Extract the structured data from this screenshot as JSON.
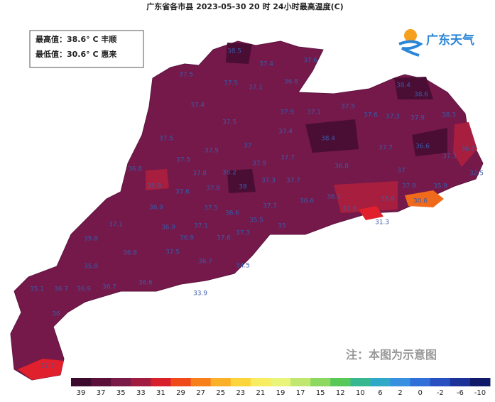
{
  "header": {
    "title": "广东省各市县 2023-05-30 20 时 24小时最高温度(C)"
  },
  "info": {
    "max": "最高值：38.6° C 丰顺",
    "min": "最低值：30.6° C 惠来"
  },
  "logo": {
    "text": "广东天气"
  },
  "note": "注：本图为示意图",
  "stations": [
    38.5,
    37.4,
    37.6,
    37.5,
    37.5,
    37.1,
    36.8,
    38.4,
    38.6,
    37.4,
    37.9,
    37.1,
    37.5,
    37.6,
    37.3,
    37.9,
    38.3,
    37.5,
    37.4,
    38.4,
    37.5,
    37.5,
    37,
    37.7,
    37.7,
    36.6,
    37.3,
    36.7,
    37.5,
    37.9,
    36.8,
    37.8,
    38.2,
    38,
    37.3,
    37.7,
    36.8,
    37,
    35.9,
    37.6,
    37.8,
    32.5,
    35.9,
    36.7,
    36.6,
    37.9,
    36.6,
    36.9,
    37.5,
    37.7,
    37.8,
    30.6,
    37.1,
    36.9,
    37.1,
    36.6,
    35.5,
    35,
    31.3,
    35.8,
    36.9,
    37.6,
    37.3,
    36.8,
    37.5,
    35.8,
    36.7,
    34.5,
    35.1,
    36.7,
    36.9,
    36.7,
    36.6,
    33.9,
    36,
    32.3
  ],
  "legend": [
    {
      "value": 39,
      "color": "#3b0a2c"
    },
    {
      "value": 37,
      "color": "#5a1038"
    },
    {
      "value": 35,
      "color": "#7a1a48"
    },
    {
      "value": 33,
      "color": "#a01c40"
    },
    {
      "value": 31,
      "color": "#d8202c"
    },
    {
      "value": 29,
      "color": "#f04a1c"
    },
    {
      "value": 27,
      "color": "#f8801c"
    },
    {
      "value": 25,
      "color": "#fbb02a"
    },
    {
      "value": 23,
      "color": "#fcd43c"
    },
    {
      "value": 21,
      "color": "#f8ec60"
    },
    {
      "value": 19,
      "color": "#e8f47a"
    },
    {
      "value": 17,
      "color": "#c0e870"
    },
    {
      "value": 15,
      "color": "#8cd860"
    },
    {
      "value": 12,
      "color": "#58c858"
    },
    {
      "value": 10,
      "color": "#38b890"
    },
    {
      "value": 6,
      "color": "#30a8c8"
    },
    {
      "value": 2,
      "color": "#3890e0"
    },
    {
      "value": 0,
      "color": "#3070d8"
    },
    {
      "value": -2,
      "color": "#2850c0"
    },
    {
      "value": -6,
      "color": "#1c3298"
    },
    {
      "value": -10,
      "color": "#101a68"
    }
  ]
}
